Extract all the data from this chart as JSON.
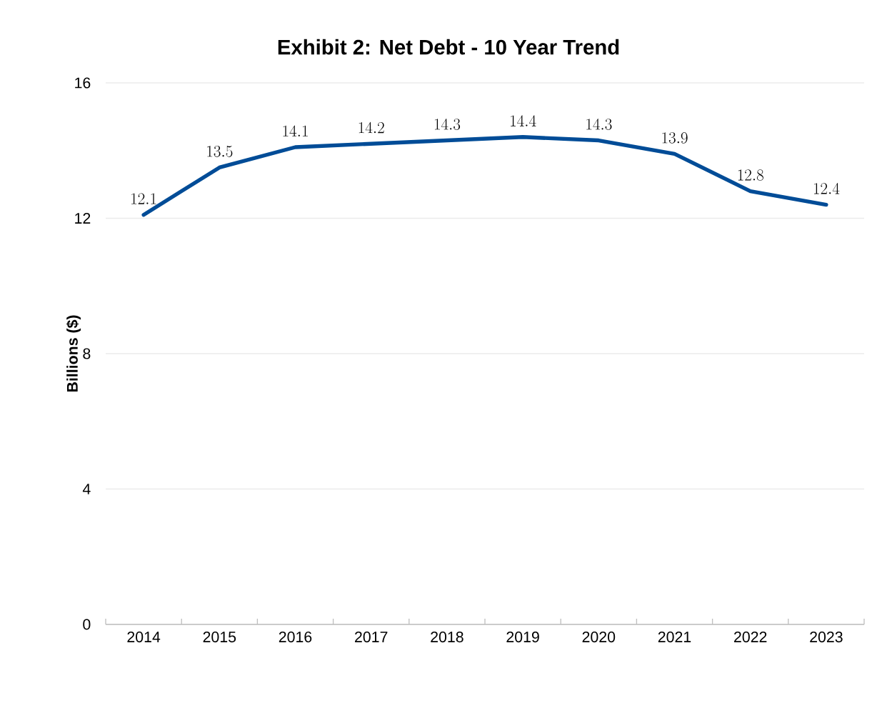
{
  "chart_data": {
    "type": "line",
    "title": "Exhibit 2: Net Debt - 10 Year Trend",
    "ylabel": "Billions ($)",
    "categories": [
      "2014",
      "2015",
      "2016",
      "2017",
      "2018",
      "2019",
      "2020",
      "2021",
      "2022",
      "2023"
    ],
    "values": [
      12.1,
      13.5,
      14.1,
      14.2,
      14.3,
      14.4,
      14.3,
      13.9,
      12.8,
      12.4
    ],
    "color": "#004c97",
    "ylim": [
      0,
      16
    ],
    "yticks": [
      0,
      4,
      8,
      12,
      16
    ],
    "grid": "y",
    "data_labels": true
  }
}
